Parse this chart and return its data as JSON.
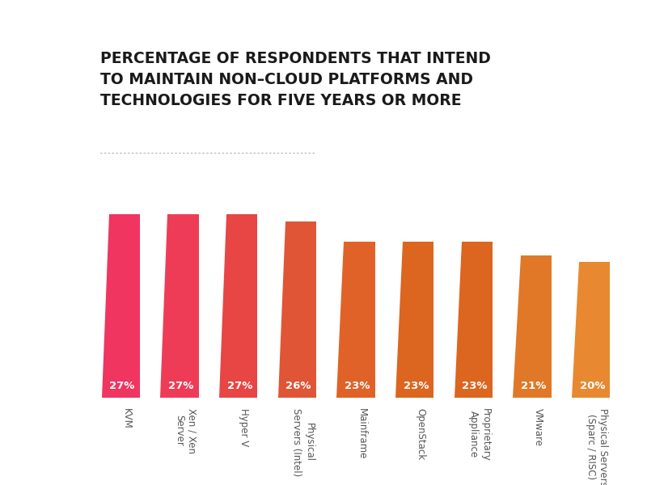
{
  "categories": [
    "KVM",
    "Xen / Xen\nServer",
    "Hyper V",
    "Physical\nServers (Intel)",
    "Mainframe",
    "OpenStack",
    "Proprietary\nAppliance",
    "VMware",
    "Physical Servers\n(Sparc / RISC)"
  ],
  "values": [
    27,
    27,
    27,
    26,
    23,
    23,
    23,
    21,
    20
  ],
  "bar_colors": [
    "#EF3560",
    "#EF3C56",
    "#E84545",
    "#E05535",
    "#E06228",
    "#DC6520",
    "#DC6520",
    "#E07828",
    "#E88830"
  ],
  "value_labels": [
    "27%",
    "27%",
    "27%",
    "26%",
    "23%",
    "23%",
    "23%",
    "21%",
    "20%"
  ],
  "title_line1": "PERCENTAGE OF RESPONDENTS THAT INTEND",
  "title_line2": "TO MAINTAIN NON–CLOUD PLATFORMS AND",
  "title_line3": "TECHNOLOGIES FOR FIVE YEARS OR MORE",
  "background_color": "#ffffff",
  "text_color": "#555555",
  "bar_text_color": "#ffffff",
  "title_fontsize": 13.5,
  "label_fontsize": 8.5,
  "value_fontsize": 9.5,
  "max_bar_height": 27,
  "figsize": [
    8.0,
    6.0
  ],
  "dpi": 100
}
